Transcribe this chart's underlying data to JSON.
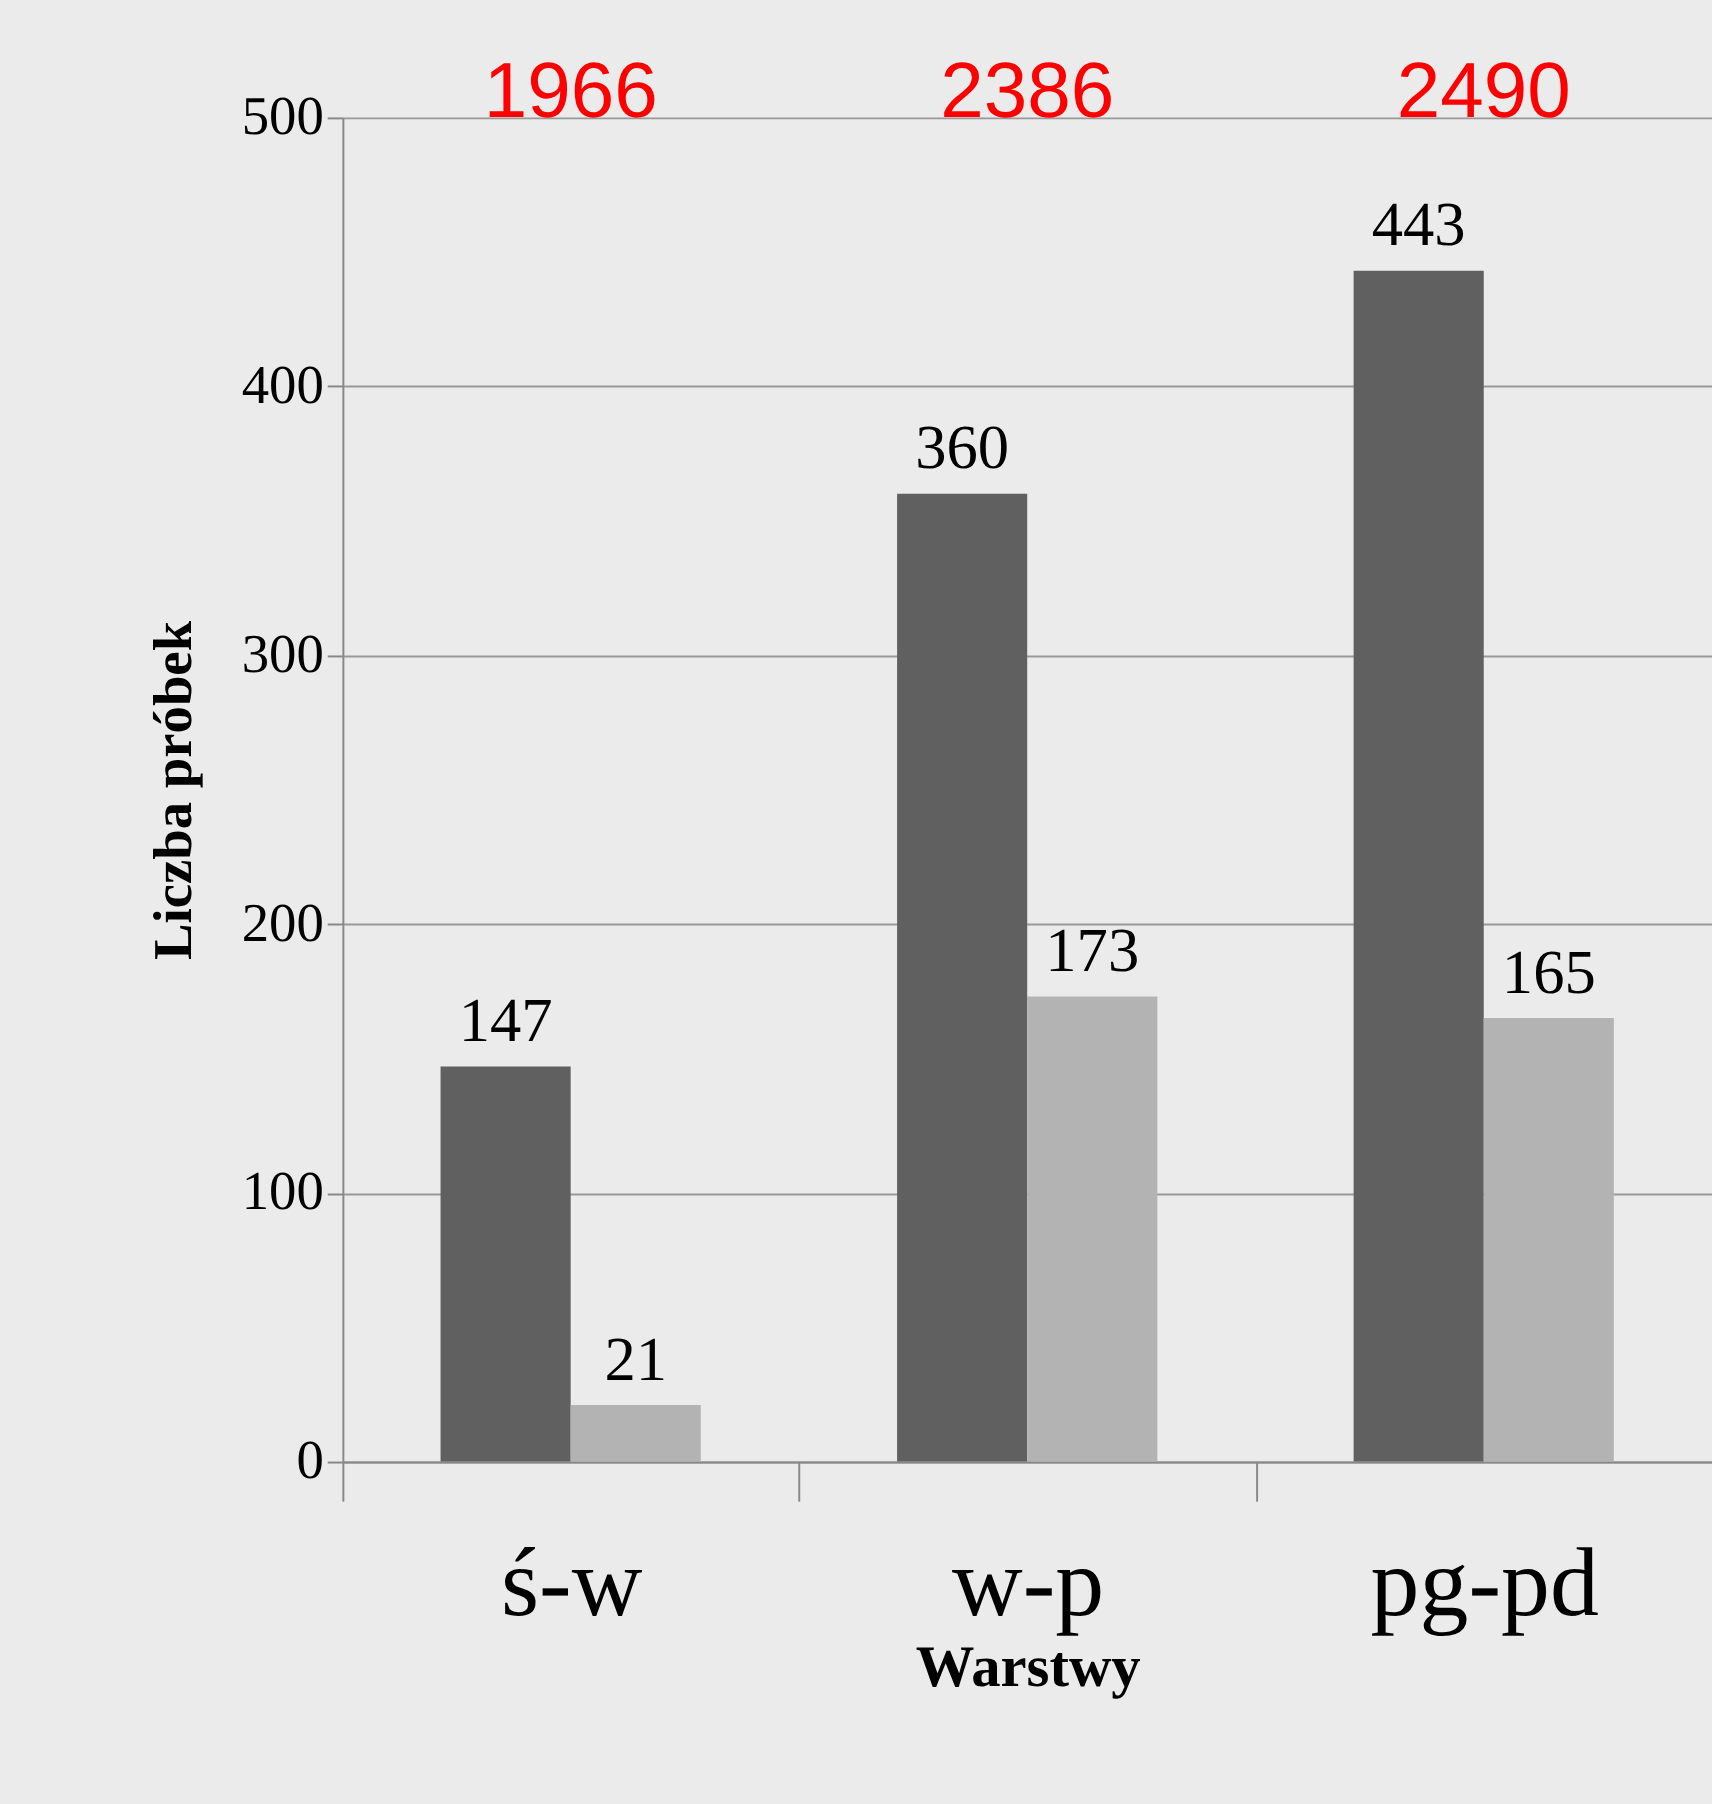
{
  "chart_data": {
    "type": "bar",
    "xlabel": "Warstwy",
    "ylabel": "Liczba próbek",
    "categories": [
      "ś-w",
      "w-p",
      "pg-pd"
    ],
    "series": [
      {
        "color": "#606060",
        "values": [
          147,
          360,
          443
        ]
      },
      {
        "color": "#b3b3b3",
        "values": [
          21,
          173,
          165
        ]
      }
    ],
    "ylim": [
      0,
      500
    ],
    "yticks": [
      0,
      100,
      200,
      300,
      400,
      500
    ],
    "grid": "y",
    "data_labels": true,
    "annotations": [
      "1966",
      "2386",
      "2490"
    ]
  }
}
